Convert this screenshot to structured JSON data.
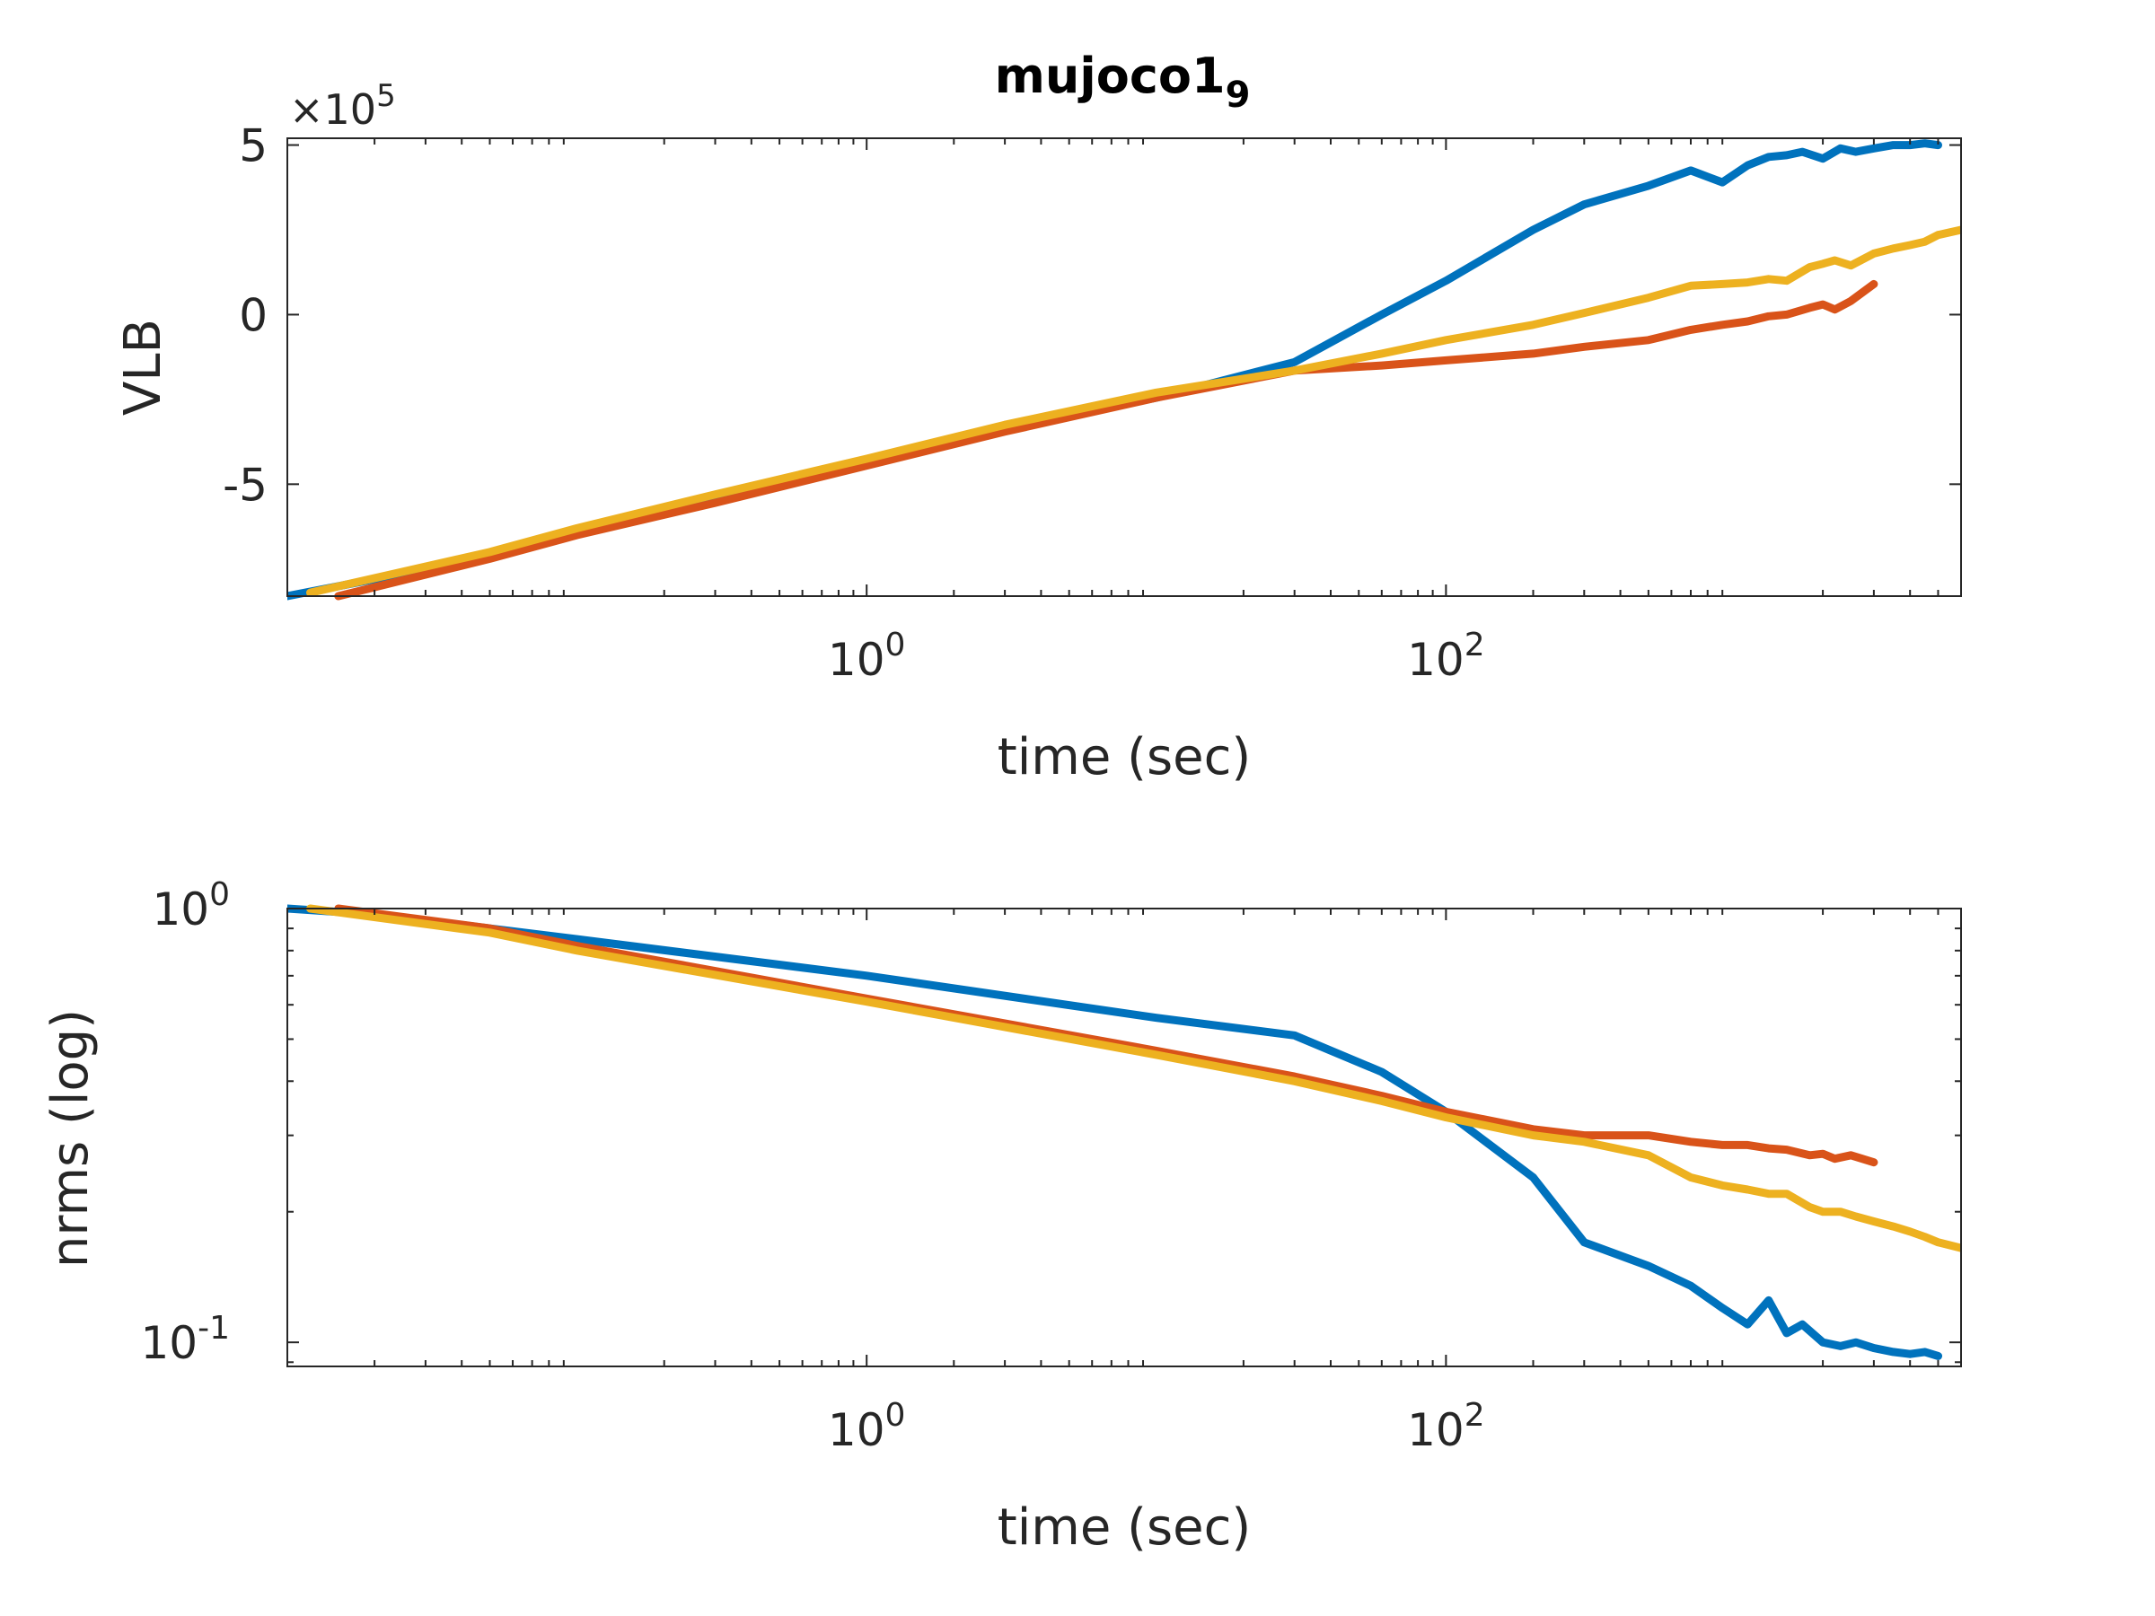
{
  "chart_data": [
    {
      "type": "line",
      "title": "mujoco1",
      "title_subscript": "9",
      "xlabel": "time (sec)",
      "ylabel": "VLB",
      "y_multiplier_label": "×10",
      "y_multiplier_exponent": "5",
      "xscale": "log",
      "yscale": "linear",
      "xlim": [
        0.01,
        6000
      ],
      "ylim": [
        -830000,
        520000
      ],
      "x_ticks": [
        {
          "value": 1,
          "base": "10",
          "exp": "0"
        },
        {
          "value": 100,
          "base": "10",
          "exp": "2"
        }
      ],
      "y_ticks": [
        {
          "value": -500000,
          "label": "-5"
        },
        {
          "value": 0,
          "label": "0"
        },
        {
          "value": 500000,
          "label": "5"
        }
      ],
      "grid": false,
      "series": [
        {
          "color": "#0072BD",
          "x": [
            0.01,
            0.02,
            0.05,
            0.1,
            0.3,
            1,
            3,
            10,
            30,
            60,
            100,
            200,
            300,
            500,
            700,
            900,
            1100,
            1300,
            1500,
            1700,
            2000,
            2300,
            2600,
            3000,
            3500,
            4000,
            4500,
            5000
          ],
          "y": [
            -830000,
            -780000,
            -710000,
            -640000,
            -540000,
            -430000,
            -335000,
            -245000,
            -140000,
            0,
            100000,
            250000,
            325000,
            380000,
            425000,
            390000,
            440000,
            465000,
            470000,
            480000,
            460000,
            490000,
            480000,
            490000,
            500000,
            500000,
            505000,
            500000
          ]
        },
        {
          "color": "#D95319",
          "x": [
            0.015,
            0.05,
            0.1,
            0.3,
            1,
            3,
            10,
            30,
            60,
            100,
            200,
            300,
            500,
            700,
            900,
            1100,
            1300,
            1500,
            1800,
            2000,
            2200,
            2500,
            3000
          ],
          "y": [
            -830000,
            -720000,
            -650000,
            -555000,
            -445000,
            -345000,
            -245000,
            -165000,
            -150000,
            -135000,
            -115000,
            -95000,
            -75000,
            -45000,
            -30000,
            -20000,
            -5000,
            0,
            20000,
            30000,
            15000,
            40000,
            90000
          ]
        },
        {
          "color": "#EDB120",
          "x": [
            0.012,
            0.05,
            0.1,
            0.3,
            1,
            3,
            10,
            30,
            60,
            100,
            200,
            300,
            500,
            700,
            900,
            1100,
            1300,
            1500,
            1800,
            2000,
            2200,
            2500,
            3000,
            3500,
            4000,
            4500,
            5000,
            6000
          ],
          "y": [
            -820000,
            -700000,
            -630000,
            -530000,
            -425000,
            -325000,
            -230000,
            -165000,
            -115000,
            -75000,
            -30000,
            5000,
            50000,
            85000,
            90000,
            95000,
            105000,
            100000,
            140000,
            150000,
            160000,
            145000,
            180000,
            195000,
            205000,
            215000,
            235000,
            250000
          ]
        }
      ]
    },
    {
      "type": "line",
      "title": "",
      "xlabel": "time (sec)",
      "ylabel": "nrms (log)",
      "xscale": "log",
      "yscale": "log",
      "xlim": [
        0.01,
        6000
      ],
      "ylim": [
        0.088,
        1.0
      ],
      "x_ticks": [
        {
          "value": 1,
          "base": "10",
          "exp": "0"
        },
        {
          "value": 100,
          "base": "10",
          "exp": "2"
        }
      ],
      "y_ticks": [
        {
          "value": 0.1,
          "base": "10",
          "exp": "-1"
        },
        {
          "value": 1,
          "base": "10",
          "exp": "0"
        }
      ],
      "grid": false,
      "series": [
        {
          "color": "#0072BD",
          "x": [
            0.01,
            0.02,
            0.1,
            1,
            10,
            30,
            60,
            100,
            200,
            300,
            500,
            700,
            900,
            1100,
            1300,
            1500,
            1700,
            2000,
            2300,
            2600,
            3000,
            3500,
            4000,
            4500,
            5000
          ],
          "y": [
            1.0,
            0.97,
            0.85,
            0.7,
            0.56,
            0.51,
            0.42,
            0.34,
            0.24,
            0.17,
            0.15,
            0.135,
            0.12,
            0.11,
            0.125,
            0.105,
            0.11,
            0.1,
            0.098,
            0.1,
            0.097,
            0.095,
            0.094,
            0.095,
            0.093
          ]
        },
        {
          "color": "#D95319",
          "x": [
            0.015,
            0.05,
            0.1,
            1,
            10,
            30,
            60,
            100,
            200,
            300,
            500,
            700,
            900,
            1100,
            1300,
            1500,
            1800,
            2000,
            2200,
            2500,
            3000
          ],
          "y": [
            1.0,
            0.9,
            0.82,
            0.62,
            0.47,
            0.41,
            0.37,
            0.34,
            0.31,
            0.3,
            0.3,
            0.29,
            0.285,
            0.285,
            0.28,
            0.278,
            0.27,
            0.272,
            0.265,
            0.27,
            0.26
          ]
        },
        {
          "color": "#EDB120",
          "x": [
            0.012,
            0.05,
            0.1,
            1,
            10,
            30,
            60,
            100,
            200,
            300,
            500,
            700,
            900,
            1100,
            1300,
            1500,
            1800,
            2000,
            2300,
            2600,
            3000,
            3500,
            4000,
            4500,
            5000,
            6000
          ],
          "y": [
            1.0,
            0.88,
            0.8,
            0.61,
            0.46,
            0.4,
            0.36,
            0.33,
            0.3,
            0.29,
            0.27,
            0.24,
            0.23,
            0.225,
            0.22,
            0.22,
            0.205,
            0.2,
            0.2,
            0.195,
            0.19,
            0.185,
            0.18,
            0.175,
            0.17,
            0.165
          ]
        }
      ]
    }
  ]
}
